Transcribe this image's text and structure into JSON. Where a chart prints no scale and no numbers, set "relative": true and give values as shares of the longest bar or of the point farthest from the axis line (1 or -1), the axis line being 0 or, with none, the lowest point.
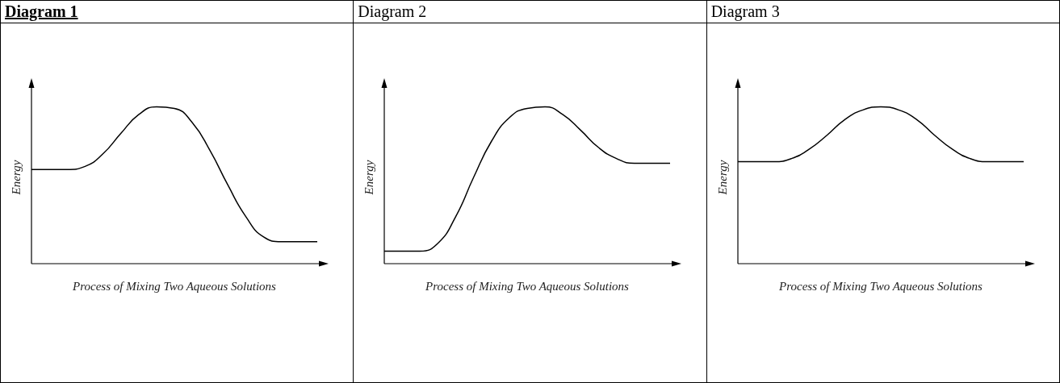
{
  "chart_data": [
    {
      "type": "line",
      "title": "Diagram 1",
      "xlabel": "Process of Mixing Two Aqueous Solutions",
      "ylabel": "Energy",
      "relative": true,
      "color": "#000000",
      "marker": "none",
      "grid": false,
      "categories": [
        null,
        null,
        null,
        null,
        null,
        null,
        null,
        null,
        null,
        null,
        null,
        null,
        null,
        null,
        null,
        null,
        null
      ],
      "values": [
        0.6,
        0.6,
        0.6,
        0.62,
        0.7,
        0.83,
        0.95,
        1.0,
        0.99,
        0.9,
        0.72,
        0.5,
        0.3,
        0.17,
        0.14,
        0.14,
        0.14
      ]
    },
    {
      "type": "line",
      "title": "Diagram 2",
      "xlabel": "Process of Mixing Two Aqueous Solutions",
      "ylabel": "Energy",
      "relative": true,
      "color": "#000000",
      "marker": "none",
      "grid": false,
      "categories": [
        null,
        null,
        null,
        null,
        null,
        null,
        null,
        null,
        null,
        null,
        null,
        null,
        null,
        null,
        null,
        null,
        null
      ],
      "values": [
        0.08,
        0.08,
        0.08,
        0.13,
        0.3,
        0.55,
        0.78,
        0.93,
        0.99,
        1.0,
        0.95,
        0.85,
        0.74,
        0.67,
        0.64,
        0.64,
        0.64
      ]
    },
    {
      "type": "line",
      "title": "Diagram 3",
      "xlabel": "Process of Mixing Two Aqueous Solutions",
      "ylabel": "Energy",
      "relative": true,
      "color": "#000000",
      "marker": "none",
      "grid": false,
      "categories": [
        null,
        null,
        null,
        null,
        null,
        null,
        null,
        null,
        null,
        null,
        null,
        null,
        null,
        null,
        null,
        null,
        null
      ],
      "values": [
        0.65,
        0.65,
        0.65,
        0.67,
        0.73,
        0.82,
        0.92,
        0.98,
        1.0,
        0.98,
        0.92,
        0.82,
        0.73,
        0.67,
        0.65,
        0.65,
        0.65
      ]
    }
  ]
}
